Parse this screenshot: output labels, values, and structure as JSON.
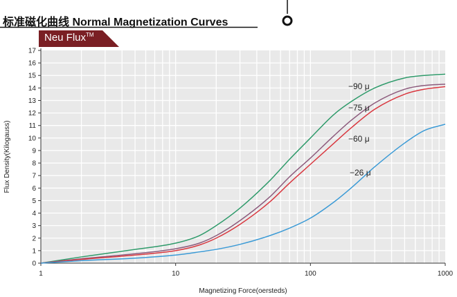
{
  "header": {
    "title": "标准磁化曲线 Normal Magnetization Curves",
    "badge": "Neu Flux",
    "badge_mark": "TM"
  },
  "colors": {
    "badge_bg": "#7a1f24",
    "header_line": "#111111",
    "plot_bg": "#e9e9e9",
    "grid": "#ffffff"
  },
  "chart_data": {
    "type": "line",
    "title": "",
    "xlabel": "Magnetizing Force(oersteds)",
    "ylabel": "Flux Density(Kilogauss)",
    "xscale": "log",
    "xlim": [
      1,
      1000
    ],
    "ylim": [
      0,
      17
    ],
    "xticks": [
      1,
      10,
      100,
      1000
    ],
    "xtick_labels": [
      "1",
      "10",
      "100",
      "1000"
    ],
    "yticks": [
      0,
      1,
      2,
      3,
      4,
      5,
      6,
      7,
      8,
      9,
      10,
      11,
      12,
      13,
      14,
      15,
      16,
      17
    ],
    "grid": true,
    "series": [
      {
        "name": "−90 μ",
        "color": "#2e9a6a",
        "x": [
          1,
          2,
          5,
          10,
          15,
          20,
          30,
          50,
          70,
          100,
          150,
          200,
          300,
          500,
          700,
          1000
        ],
        "y": [
          0,
          0.5,
          1.1,
          1.6,
          2.2,
          3.0,
          4.4,
          6.6,
          8.3,
          10.0,
          11.9,
          12.9,
          14.0,
          14.8,
          15.0,
          15.1
        ]
      },
      {
        "name": "−75 μ",
        "color": "#8c5a7c",
        "x": [
          1,
          2,
          5,
          10,
          15,
          20,
          30,
          50,
          70,
          100,
          150,
          200,
          300,
          500,
          700,
          1000
        ],
        "y": [
          0,
          0.35,
          0.75,
          1.15,
          1.6,
          2.2,
          3.4,
          5.3,
          6.9,
          8.4,
          10.2,
          11.4,
          12.8,
          13.9,
          14.2,
          14.3
        ]
      },
      {
        "name": "−60 μ",
        "color": "#d9363e",
        "x": [
          1,
          2,
          5,
          10,
          15,
          20,
          30,
          50,
          70,
          100,
          150,
          200,
          300,
          500,
          700,
          1000
        ],
        "y": [
          0,
          0.3,
          0.65,
          1.0,
          1.45,
          2.0,
          3.1,
          4.9,
          6.4,
          7.9,
          9.6,
          10.8,
          12.3,
          13.5,
          13.9,
          14.1
        ]
      },
      {
        "name": "−26 μ",
        "color": "#3a9ad6",
        "x": [
          1,
          2,
          5,
          10,
          15,
          20,
          30,
          50,
          70,
          100,
          150,
          200,
          300,
          500,
          700,
          1000
        ],
        "y": [
          0,
          0.2,
          0.4,
          0.65,
          0.9,
          1.1,
          1.5,
          2.2,
          2.8,
          3.6,
          4.9,
          6.0,
          7.7,
          9.6,
          10.6,
          11.1
        ]
      }
    ]
  }
}
